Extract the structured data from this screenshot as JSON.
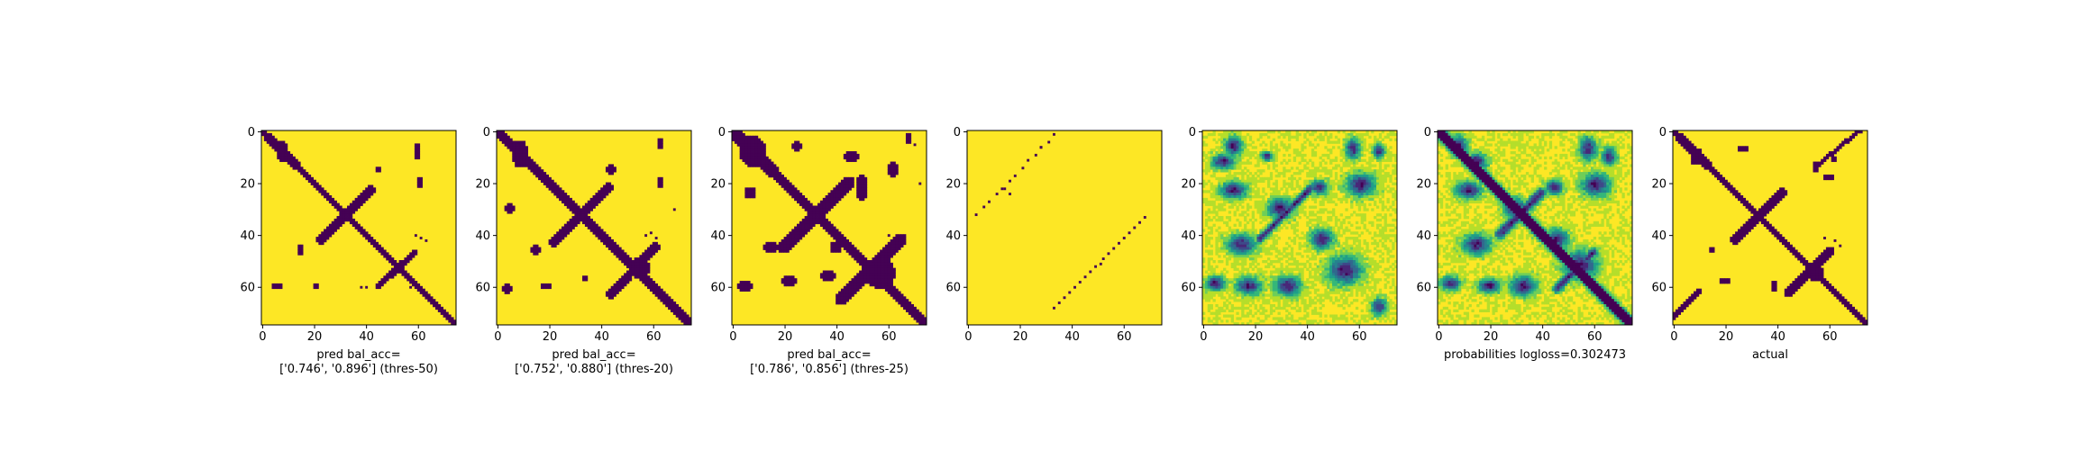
{
  "colors": {
    "low": "#440154",
    "high": "#fde725",
    "viridis": [
      "#440154",
      "#482878",
      "#3e4989",
      "#31688e",
      "#26828e",
      "#1f9e89",
      "#35b779",
      "#6ece58",
      "#b5de2b",
      "#fde725"
    ]
  },
  "chart_data": [
    {
      "type": "heatmap",
      "id": "panel-1",
      "style": "binary",
      "xticks": [
        0,
        20,
        40,
        60
      ],
      "yticks": [
        0,
        20,
        40,
        60
      ],
      "xlim": [
        0,
        75
      ],
      "ylim": [
        0,
        75
      ],
      "caption": [
        "pred bal_acc=",
        "['0.746', '0.896'] (thres-50)"
      ],
      "diagonals": [
        {
          "from": [
            0,
            0
          ],
          "to": [
            75,
            75
          ],
          "width": 2.6
        }
      ],
      "antidiagonals": [
        {
          "from": [
            3,
            3
          ],
          "to": [
            13,
            13
          ],
          "width": 3.2
        },
        {
          "from": [
            23,
            42
          ],
          "to": [
            42,
            23
          ],
          "width": 3.4
        },
        {
          "from": [
            45,
            60
          ],
          "to": [
            59,
            47
          ],
          "width": 2.4
        }
      ],
      "blobs": [
        [
          8,
          8,
          2.5,
          4.0
        ],
        [
          60,
          8,
          1.5,
          3.0
        ],
        [
          45,
          15,
          1.5,
          1.5
        ],
        [
          61,
          20,
          1.0,
          1.8
        ],
        [
          15,
          46,
          1.5,
          1.6
        ],
        [
          6,
          60,
          1.8,
          1.2
        ],
        [
          21,
          60,
          1.6,
          1.0
        ]
      ],
      "specks": [
        [
          38,
          60
        ],
        [
          40,
          60
        ],
        [
          57,
          60
        ],
        [
          59,
          60
        ],
        [
          59,
          40
        ],
        [
          61,
          41
        ],
        [
          63,
          42
        ]
      ]
    },
    {
      "type": "heatmap",
      "id": "panel-2",
      "style": "binary",
      "xticks": [
        0,
        20,
        40,
        60
      ],
      "yticks": [
        0,
        20,
        40,
        60
      ],
      "xlim": [
        0,
        75
      ],
      "ylim": [
        0,
        75
      ],
      "caption": [
        "pred bal_acc=",
        "['0.752', '0.880'] (thres-20)"
      ],
      "diagonals": [
        {
          "from": [
            0,
            0
          ],
          "to": [
            75,
            75
          ],
          "width": 3.2
        }
      ],
      "antidiagonals": [
        {
          "from": [
            2,
            2
          ],
          "to": [
            14,
            14
          ],
          "width": 4.0
        },
        {
          "from": [
            22,
            43
          ],
          "to": [
            43,
            22
          ],
          "width": 4.0
        },
        {
          "from": [
            44,
            63
          ],
          "to": [
            61,
            45
          ],
          "width": 3.4
        }
      ],
      "blobs": [
        [
          9,
          9,
          3.5,
          5.0
        ],
        [
          5,
          30,
          1.8,
          1.8
        ],
        [
          44,
          15,
          2.0,
          2.0
        ],
        [
          63,
          5,
          1.5,
          2.5
        ],
        [
          63,
          20,
          1.2,
          2.0
        ],
        [
          15,
          46,
          2.2,
          1.8
        ],
        [
          4,
          61,
          2.0,
          1.6
        ],
        [
          19,
          60,
          2.5,
          1.5
        ],
        [
          34,
          57,
          1.5,
          1.2
        ],
        [
          55,
          53,
          4.0,
          4.0
        ]
      ],
      "specks": [
        [
          59,
          39
        ],
        [
          61,
          41
        ],
        [
          57,
          40
        ],
        [
          68,
          30
        ]
      ]
    },
    {
      "type": "heatmap",
      "id": "panel-3",
      "style": "binary",
      "xticks": [
        0,
        20,
        40,
        60
      ],
      "yticks": [
        0,
        20,
        40,
        60
      ],
      "xlim": [
        0,
        75
      ],
      "ylim": [
        0,
        75
      ],
      "caption": [
        "pred bal_acc=",
        "['0.786', '0.856'] (thres-25)"
      ],
      "diagonals": [
        {
          "from": [
            0,
            0
          ],
          "to": [
            75,
            75
          ],
          "width": 3.8
        }
      ],
      "antidiagonals": [
        {
          "from": [
            1,
            1
          ],
          "to": [
            16,
            16
          ],
          "width": 5.0
        },
        {
          "from": [
            20,
            45
          ],
          "to": [
            45,
            20
          ],
          "width": 5.0
        },
        {
          "from": [
            42,
            65
          ],
          "to": [
            65,
            42
          ],
          "width": 4.5
        }
      ],
      "blobs": [
        [
          8,
          8,
          5.0,
          6.0
        ],
        [
          7,
          24,
          2.5,
          2.2
        ],
        [
          25,
          6,
          2.0,
          2.0
        ],
        [
          46,
          10,
          3.0,
          2.5
        ],
        [
          50,
          22,
          2.5,
          5.0
        ],
        [
          62,
          15,
          2.5,
          3.0
        ],
        [
          68,
          3,
          1.5,
          2.0
        ],
        [
          15,
          45,
          2.8,
          2.2
        ],
        [
          5,
          60,
          3.0,
          2.2
        ],
        [
          22,
          58,
          3.5,
          2.0
        ],
        [
          37,
          56,
          3.0,
          2.0
        ],
        [
          57,
          55,
          6.0,
          6.0
        ],
        [
          40,
          45,
          2.5,
          2.5
        ]
      ],
      "specks": [
        [
          70,
          5
        ],
        [
          72,
          20
        ],
        [
          60,
          40
        ]
      ]
    },
    {
      "type": "heatmap",
      "id": "panel-4",
      "style": "sparse",
      "xticks": [
        0,
        20,
        40,
        60
      ],
      "yticks": [
        0,
        20,
        40,
        60
      ],
      "xlim": [
        0,
        75
      ],
      "ylim": [
        0,
        75
      ],
      "caption": [],
      "dotlines": [
        {
          "from": [
            33,
            1
          ],
          "to": [
            3,
            32
          ],
          "steps": 12
        },
        {
          "from": [
            68,
            33
          ],
          "to": [
            33,
            68
          ],
          "steps": 18
        }
      ],
      "specks": [
        [
          28,
          6
        ],
        [
          16,
          24
        ],
        [
          14,
          22
        ]
      ]
    },
    {
      "type": "heatmap",
      "id": "panel-5",
      "style": "continuous",
      "xticks": [
        0,
        20,
        40,
        60
      ],
      "yticks": [
        0,
        20,
        40,
        60
      ],
      "xlim": [
        0,
        75
      ],
      "ylim": [
        0,
        75
      ],
      "caption": [],
      "seed": 11,
      "diagonal_fill": false,
      "antidiagonals": [
        {
          "from": [
            22,
            42
          ],
          "to": [
            42,
            22
          ],
          "width": 2.5
        }
      ],
      "blobs": [
        [
          12,
          6,
          3.0,
          3.5
        ],
        [
          8,
          12,
          4.0,
          2.5
        ],
        [
          58,
          7,
          2.5,
          3.5
        ],
        [
          68,
          8,
          2.0,
          2.5
        ],
        [
          25,
          10,
          2.0,
          1.5
        ],
        [
          30,
          30,
          4.5,
          3.5
        ],
        [
          12,
          23,
          4.5,
          3.0
        ],
        [
          61,
          21,
          5.0,
          4.0
        ],
        [
          45,
          22,
          3.0,
          2.5
        ],
        [
          15,
          44,
          5.0,
          3.5
        ],
        [
          5,
          59,
          3.5,
          2.5
        ],
        [
          18,
          60,
          4.5,
          3.0
        ],
        [
          33,
          60,
          4.5,
          3.5
        ],
        [
          55,
          54,
          6.0,
          5.0
        ],
        [
          46,
          42,
          4.0,
          3.5
        ],
        [
          68,
          68,
          2.5,
          3.0
        ]
      ]
    },
    {
      "type": "heatmap",
      "id": "panel-6",
      "style": "continuous",
      "xticks": [
        0,
        20,
        40,
        60
      ],
      "yticks": [
        0,
        20,
        40,
        60
      ],
      "xlim": [
        0,
        75
      ],
      "ylim": [
        0,
        75
      ],
      "caption": [
        "probabilities logloss=0.302473"
      ],
      "seed": 7,
      "diagonal_fill": true,
      "antidiagonals": [
        {
          "from": [
            3,
            3
          ],
          "to": [
            13,
            13
          ],
          "width": 3.0
        },
        {
          "from": [
            24,
            40
          ],
          "to": [
            40,
            24
          ],
          "width": 3.5
        },
        {
          "from": [
            46,
            61
          ],
          "to": [
            60,
            47
          ],
          "width": 3.0
        }
      ],
      "blobs": [
        [
          8,
          6,
          3.0,
          3.5
        ],
        [
          15,
          12,
          3.5,
          3.0
        ],
        [
          58,
          7,
          3.0,
          4.0
        ],
        [
          66,
          10,
          2.5,
          3.0
        ],
        [
          12,
          23,
          4.5,
          3.0
        ],
        [
          30,
          30,
          4.0,
          3.5
        ],
        [
          61,
          21,
          5.0,
          4.0
        ],
        [
          45,
          22,
          3.0,
          2.5
        ],
        [
          15,
          44,
          5.0,
          3.5
        ],
        [
          5,
          59,
          3.5,
          2.5
        ],
        [
          20,
          60,
          4.0,
          2.5
        ],
        [
          33,
          60,
          4.5,
          3.5
        ],
        [
          55,
          52,
          6.0,
          5.0
        ],
        [
          46,
          42,
          4.0,
          3.5
        ]
      ]
    },
    {
      "type": "heatmap",
      "id": "panel-7",
      "style": "binary",
      "xticks": [
        0,
        20,
        40,
        60
      ],
      "yticks": [
        0,
        20,
        40,
        60
      ],
      "xlim": [
        0,
        75
      ],
      "ylim": [
        0,
        75
      ],
      "caption": [
        "actual"
      ],
      "diagonals": [
        {
          "from": [
            0,
            0
          ],
          "to": [
            75,
            75
          ],
          "width": 2.4
        }
      ],
      "antidiagonals": [
        {
          "from": [
            3,
            3
          ],
          "to": [
            13,
            13
          ],
          "width": 3.2
        },
        {
          "from": [
            24,
            42
          ],
          "to": [
            42,
            24
          ],
          "width": 3.4
        },
        {
          "from": [
            44,
            63
          ],
          "to": [
            61,
            46
          ],
          "width": 3.0
        },
        {
          "from": [
            56,
            13
          ],
          "to": [
            72,
            0
          ],
          "width": 1.6
        },
        {
          "from": [
            0,
            72
          ],
          "to": [
            10,
            62
          ],
          "width": 1.6
        }
      ],
      "blobs": [
        [
          9,
          10,
          2.5,
          3.5
        ],
        [
          27,
          7,
          1.8,
          1.5
        ],
        [
          55,
          14,
          1.5,
          2.5
        ],
        [
          60,
          18,
          2.0,
          1.5
        ],
        [
          62,
          11,
          1.2,
          1.5
        ],
        [
          15,
          46,
          1.5,
          1.5
        ],
        [
          20,
          58,
          2.5,
          1.5
        ],
        [
          39,
          60,
          1.2,
          1.8
        ],
        [
          55,
          55,
          3.5,
          3.5
        ]
      ],
      "specks": [
        [
          58,
          41
        ],
        [
          62,
          42
        ],
        [
          64,
          44
        ],
        [
          17,
          16
        ]
      ]
    }
  ]
}
